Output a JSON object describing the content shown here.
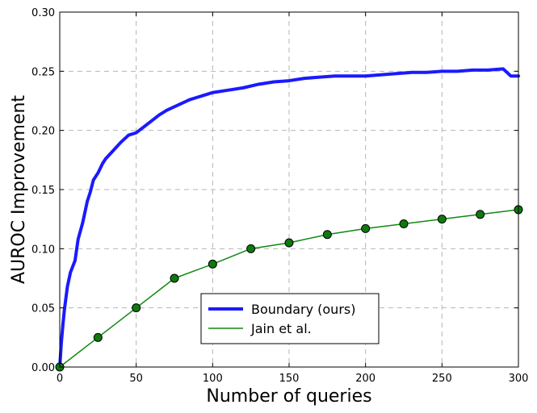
{
  "chart_data": {
    "type": "line",
    "title": "",
    "xlabel": "Number of queries",
    "ylabel": "AUROC Improvement",
    "xlim": [
      0,
      300
    ],
    "ylim": [
      0,
      0.3
    ],
    "x_ticks": [
      "0",
      "50",
      "100",
      "150",
      "200",
      "250",
      "300"
    ],
    "y_ticks": [
      "0.00",
      "0.05",
      "0.10",
      "0.15",
      "0.20",
      "0.25",
      "0.30"
    ],
    "grid": true,
    "legend_position": "bottom-center",
    "series": [
      {
        "name": "Boundary (ours)",
        "color": "#1a1aff",
        "marker": "none",
        "line_width": "thick",
        "x": [
          0,
          1,
          2,
          3,
          5,
          7,
          10,
          12,
          15,
          18,
          20,
          22,
          25,
          28,
          30,
          35,
          40,
          45,
          50,
          55,
          60,
          65,
          70,
          75,
          80,
          85,
          90,
          95,
          100,
          110,
          120,
          130,
          140,
          150,
          160,
          170,
          180,
          190,
          200,
          210,
          220,
          230,
          240,
          250,
          260,
          270,
          280,
          290,
          295,
          300
        ],
        "y": [
          0.0,
          0.02,
          0.035,
          0.048,
          0.068,
          0.08,
          0.09,
          0.108,
          0.122,
          0.14,
          0.148,
          0.158,
          0.164,
          0.172,
          0.176,
          0.183,
          0.19,
          0.196,
          0.198,
          0.203,
          0.208,
          0.213,
          0.217,
          0.22,
          0.223,
          0.226,
          0.228,
          0.23,
          0.232,
          0.234,
          0.236,
          0.239,
          0.241,
          0.242,
          0.244,
          0.245,
          0.246,
          0.246,
          0.246,
          0.247,
          0.248,
          0.249,
          0.249,
          0.25,
          0.25,
          0.251,
          0.251,
          0.252,
          0.246,
          0.246
        ]
      },
      {
        "name": "Jain et al.",
        "color": "#118811",
        "marker": "circle",
        "marker_color": "#0e7a0e",
        "line_width": "thin",
        "x": [
          0,
          25,
          50,
          75,
          100,
          125,
          150,
          175,
          200,
          225,
          250,
          275,
          300
        ],
        "y": [
          0.0,
          0.025,
          0.05,
          0.075,
          0.087,
          0.1,
          0.105,
          0.112,
          0.117,
          0.121,
          0.125,
          0.129,
          0.133
        ]
      }
    ]
  }
}
